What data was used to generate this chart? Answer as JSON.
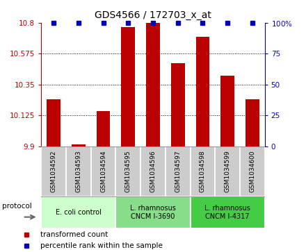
{
  "title": "GDS4566 / 172703_x_at",
  "samples": [
    "GSM1034592",
    "GSM1034593",
    "GSM1034594",
    "GSM1034595",
    "GSM1034596",
    "GSM1034597",
    "GSM1034598",
    "GSM1034599",
    "GSM1034600"
  ],
  "transformed_counts": [
    10.24,
    9.915,
    10.155,
    10.77,
    10.8,
    10.505,
    10.695,
    10.415,
    10.24
  ],
  "percentile_values": [
    100,
    100,
    100,
    100,
    100,
    100,
    100,
    100,
    100
  ],
  "ylim_left": [
    9.9,
    10.8
  ],
  "ylim_right": [
    0,
    100
  ],
  "yticks_left": [
    9.9,
    10.125,
    10.35,
    10.575,
    10.8
  ],
  "yticks_right": [
    0,
    25,
    50,
    75,
    100
  ],
  "bar_color": "#bb0000",
  "dot_color": "#0000bb",
  "groups": [
    {
      "label": "E. coli control",
      "start": 0,
      "end": 3,
      "color": "#ccffcc"
    },
    {
      "label": "L. rhamnosus\nCNCM I-3690",
      "start": 3,
      "end": 6,
      "color": "#88dd88"
    },
    {
      "label": "L. rhamnosus\nCNCM I-4317",
      "start": 6,
      "end": 9,
      "color": "#44cc44"
    }
  ],
  "legend_red_label": "transformed count",
  "legend_blue_label": "percentile rank within the sample",
  "protocol_label": "protocol",
  "background_color": "#ffffff",
  "sample_bg_color": "#cccccc",
  "bar_width": 0.55,
  "figsize": [
    4.4,
    3.63
  ],
  "dpi": 100
}
